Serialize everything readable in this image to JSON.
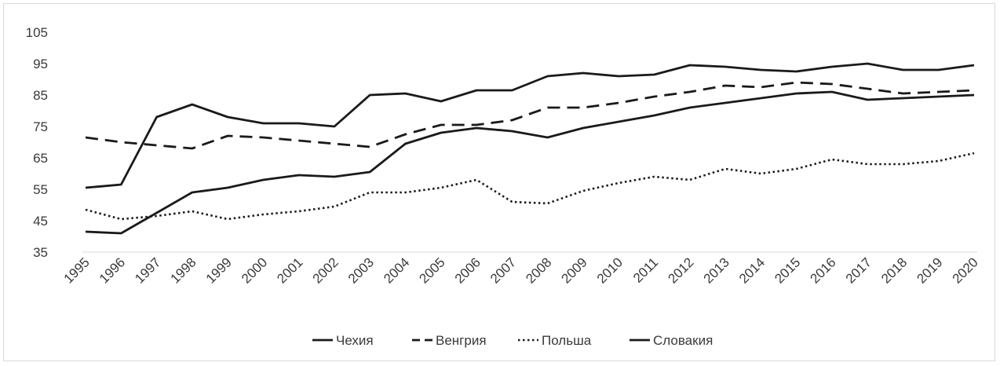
{
  "chart_data": {
    "type": "line",
    "x": [
      "1995",
      "1996",
      "1997",
      "1998",
      "1999",
      "2000",
      "2001",
      "2002",
      "2003",
      "2004",
      "2005",
      "2006",
      "2007",
      "2008",
      "2009",
      "2010",
      "2011",
      "2012",
      "2013",
      "2014",
      "2015",
      "2016",
      "2017",
      "2018",
      "2019",
      "2020"
    ],
    "yticks": [
      35,
      45,
      55,
      65,
      75,
      85,
      95,
      105
    ],
    "ylim": [
      35,
      105
    ],
    "grid": false,
    "legend_position": "bottom",
    "series": [
      {
        "name": "Чехия",
        "style": "solid",
        "color": "#1a1a1a",
        "values": [
          55.5,
          56.5,
          78,
          82,
          78,
          76,
          76,
          75,
          85,
          85.5,
          83,
          86.5,
          86.5,
          91,
          92,
          91,
          91.5,
          94.5,
          94,
          93,
          92.5,
          94,
          95,
          93,
          93,
          94.5
        ]
      },
      {
        "name": "Венгрия",
        "style": "dashed",
        "color": "#1a1a1a",
        "values": [
          71.5,
          70,
          69,
          68,
          72,
          71.5,
          70.5,
          69.5,
          68.5,
          72.5,
          75.5,
          75.5,
          77,
          81,
          81,
          82.5,
          84.5,
          86,
          88,
          87.5,
          89,
          88.5,
          87,
          85.5,
          86,
          86.5
        ]
      },
      {
        "name": "Польша",
        "style": "dotted",
        "color": "#1a1a1a",
        "values": [
          48.5,
          45.5,
          46.5,
          48,
          45.5,
          47,
          48,
          49.5,
          54,
          54,
          55.5,
          58,
          51,
          50.5,
          54.5,
          57,
          59,
          58,
          61.5,
          60,
          61.5,
          64.5,
          63,
          63,
          64,
          66.5
        ]
      },
      {
        "name": "Словакия",
        "style": "solid",
        "color": "#1a1a1a",
        "values": [
          41.5,
          41,
          47.5,
          54,
          55.5,
          58,
          59.5,
          59,
          60.5,
          69.5,
          73,
          74.5,
          73.5,
          71.5,
          74.5,
          76.5,
          78.5,
          81,
          82.5,
          84,
          85.5,
          86,
          83.5,
          84,
          84.5,
          85
        ]
      }
    ]
  }
}
